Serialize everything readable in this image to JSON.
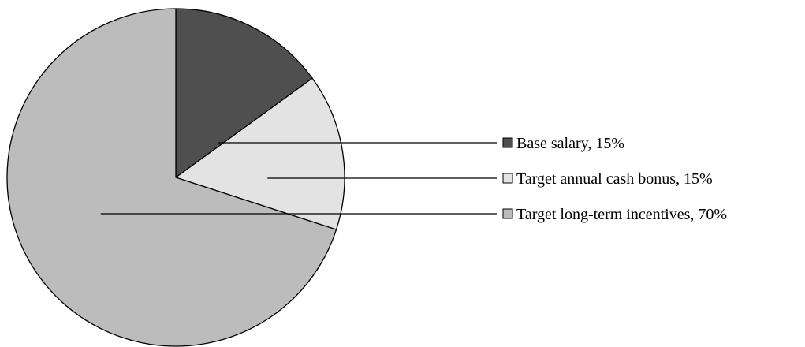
{
  "chart_data": {
    "type": "pie",
    "title": "",
    "legend_placement": "right",
    "slices": [
      {
        "label": "Base salary",
        "value": 15,
        "display": "Base salary, 15%",
        "color": "#4f4f4f"
      },
      {
        "label": "Target annual cash bonus",
        "value": 15,
        "display": "Target annual cash bonus, 15%",
        "color": "#e3e3e3"
      },
      {
        "label": "Target long-term incentives",
        "value": 70,
        "display": "Target long-term incentives, 70%",
        "color": "#bcbcbc"
      }
    ]
  }
}
